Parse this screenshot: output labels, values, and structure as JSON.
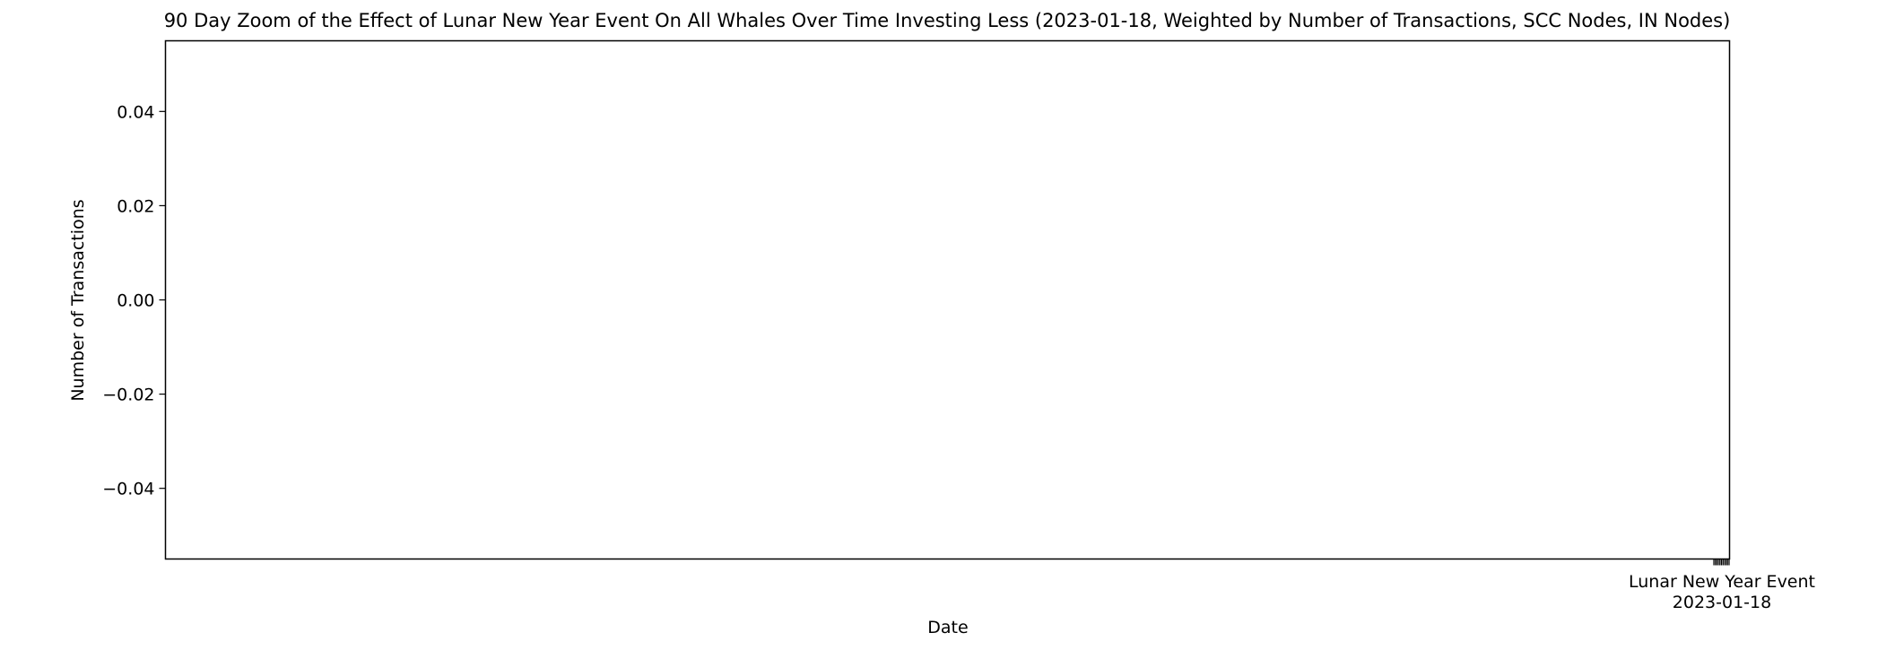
{
  "chart_data": {
    "type": "line",
    "title": "90 Day Zoom of the Effect of Lunar New Year Event On All Whales Over Time Investing Less (2023-01-18, Weighted by Number of Transactions, SCC Nodes, IN Nodes)",
    "xlabel": "Date",
    "ylabel": "Number of Transactions",
    "ylim": [
      -0.055,
      0.055
    ],
    "yticks": [
      {
        "value": 0.04,
        "label": "0.04"
      },
      {
        "value": 0.02,
        "label": "0.02"
      },
      {
        "value": 0.0,
        "label": "0.00"
      },
      {
        "value": -0.02,
        "label": "−0.02"
      },
      {
        "value": -0.04,
        "label": "−0.04"
      }
    ],
    "event": {
      "label": "Lunar New Year Event",
      "date": "2023-01-18"
    },
    "series": [],
    "grid": false,
    "legend": "none"
  }
}
